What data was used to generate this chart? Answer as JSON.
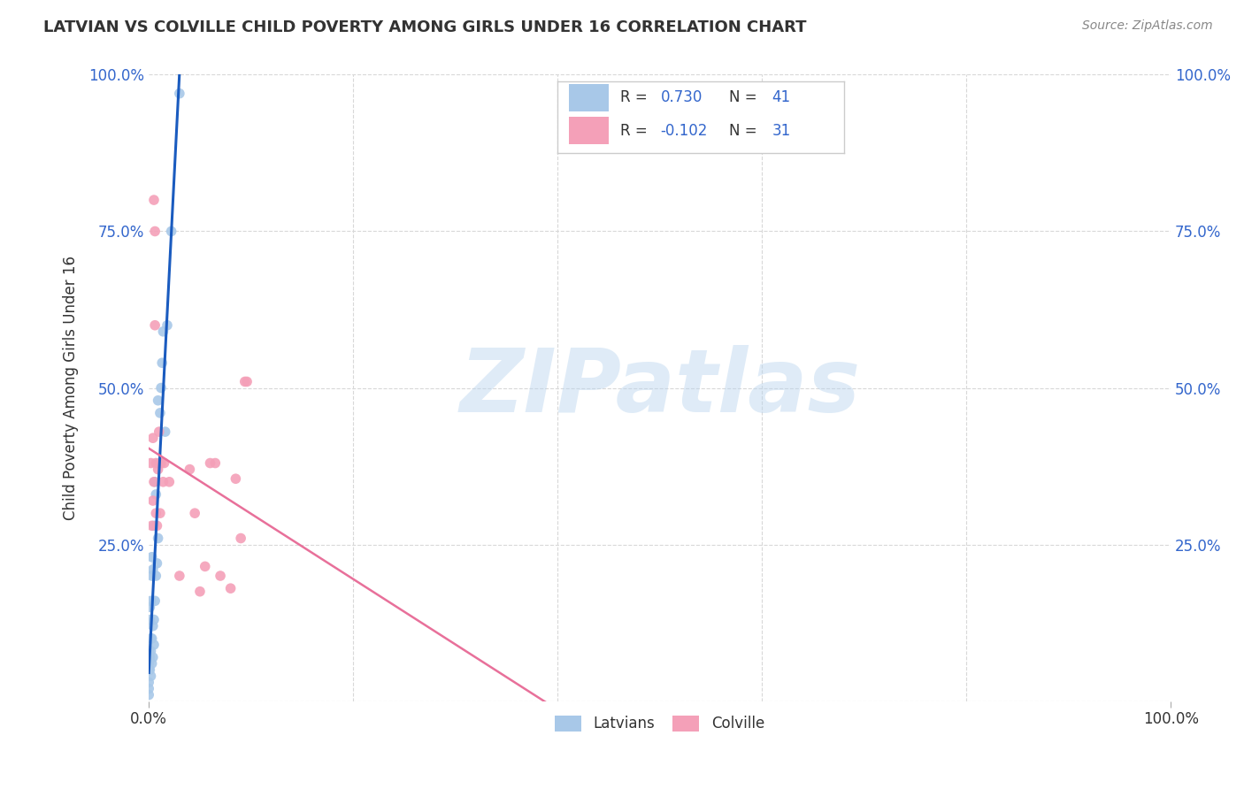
{
  "title": "LATVIAN VS COLVILLE CHILD POVERTY AMONG GIRLS UNDER 16 CORRELATION CHART",
  "source": "Source: ZipAtlas.com",
  "ylabel": "Child Poverty Among Girls Under 16",
  "latvians_R": 0.73,
  "latvians_N": 41,
  "colville_R": -0.102,
  "colville_N": 31,
  "watermark_text": "ZIPatlas",
  "latvians_color": "#a8c8e8",
  "colville_color": "#f4a0b8",
  "latvians_line_color": "#1a5bbf",
  "colville_line_color": "#e8709a",
  "blue_text_color": "#3366cc",
  "dark_text_color": "#333333",
  "source_color": "#888888",
  "grid_color": "#d8d8d8",
  "bg_color": "#ffffff",
  "marker_size": 70,
  "latvians_x": [
    0.0,
    0.0,
    0.0,
    0.0,
    0.0,
    0.0,
    0.0,
    0.001,
    0.001,
    0.001,
    0.001,
    0.002,
    0.002,
    0.002,
    0.002,
    0.003,
    0.003,
    0.003,
    0.003,
    0.004,
    0.004,
    0.004,
    0.005,
    0.005,
    0.005,
    0.006,
    0.006,
    0.007,
    0.007,
    0.008,
    0.009,
    0.009,
    0.01,
    0.011,
    0.012,
    0.013,
    0.014,
    0.016,
    0.018,
    0.022,
    0.03
  ],
  "latvians_y": [
    0.01,
    0.02,
    0.03,
    0.05,
    0.06,
    0.07,
    0.08,
    0.05,
    0.07,
    0.13,
    0.15,
    0.04,
    0.08,
    0.1,
    0.16,
    0.06,
    0.1,
    0.2,
    0.23,
    0.07,
    0.12,
    0.21,
    0.09,
    0.13,
    0.28,
    0.16,
    0.35,
    0.2,
    0.33,
    0.22,
    0.26,
    0.48,
    0.38,
    0.46,
    0.5,
    0.54,
    0.59,
    0.43,
    0.6,
    0.75,
    0.97
  ],
  "colville_x": [
    0.002,
    0.003,
    0.004,
    0.004,
    0.005,
    0.005,
    0.006,
    0.006,
    0.007,
    0.007,
    0.008,
    0.009,
    0.01,
    0.011,
    0.012,
    0.014,
    0.015,
    0.02,
    0.03,
    0.04,
    0.045,
    0.05,
    0.055,
    0.06,
    0.065,
    0.07,
    0.08,
    0.085,
    0.09,
    0.094,
    0.096
  ],
  "colville_y": [
    0.38,
    0.28,
    0.32,
    0.42,
    0.35,
    0.8,
    0.6,
    0.75,
    0.38,
    0.3,
    0.28,
    0.37,
    0.43,
    0.3,
    0.38,
    0.35,
    0.38,
    0.35,
    0.2,
    0.37,
    0.3,
    0.175,
    0.215,
    0.38,
    0.38,
    0.2,
    0.18,
    0.355,
    0.26,
    0.51,
    0.51
  ],
  "xlim": [
    0.0,
    1.0
  ],
  "ylim": [
    0.0,
    1.0
  ],
  "ytick_vals": [
    0.0,
    0.25,
    0.5,
    0.75,
    1.0
  ],
  "ytick_labels_left": [
    "",
    "25.0%",
    "50.0%",
    "75.0%",
    "100.0%"
  ],
  "ytick_labels_right": [
    "",
    "25.0%",
    "50.0%",
    "75.0%",
    "100.0%"
  ],
  "xtick_positions": [
    0.0,
    1.0
  ],
  "xtick_labels": [
    "0.0%",
    "100.0%"
  ]
}
